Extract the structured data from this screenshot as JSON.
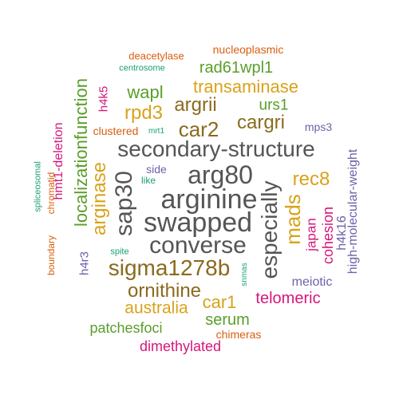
{
  "colors": {
    "gray": "#555555",
    "olive": "#8a6a1e",
    "gold": "#d9a21b",
    "green": "#5a9e2a",
    "magenta": "#d6177a",
    "purple": "#6b63a8",
    "orange": "#d95f0e",
    "teal": "#1b9e77"
  },
  "words": [
    {
      "text": "nucleoplasmic",
      "color": "orange",
      "size": 14
    },
    {
      "text": "deacetylase",
      "color": "orange",
      "size": 13
    },
    {
      "text": "centrosome",
      "color": "teal",
      "size": 11
    },
    {
      "text": "rad61wpl1",
      "color": "green",
      "size": 20
    },
    {
      "text": "localizationfunction",
      "color": "green",
      "size": 22
    },
    {
      "text": "h4k5",
      "color": "magenta",
      "size": 15
    },
    {
      "text": "wapl",
      "color": "green",
      "size": 22
    },
    {
      "text": "transaminase",
      "color": "gold",
      "size": 22
    },
    {
      "text": "rpd3",
      "color": "gold",
      "size": 24
    },
    {
      "text": "argrii",
      "color": "olive",
      "size": 24
    },
    {
      "text": "urs1",
      "color": "green",
      "size": 19
    },
    {
      "text": "cargri",
      "color": "olive",
      "size": 24
    },
    {
      "text": "car2",
      "color": "olive",
      "size": 26
    },
    {
      "text": "clustered",
      "color": "orange",
      "size": 14
    },
    {
      "text": "mrt1",
      "color": "teal",
      "size": 10
    },
    {
      "text": "mps3",
      "color": "purple",
      "size": 14
    },
    {
      "text": "hmt1-deletion",
      "color": "magenta",
      "size": 16
    },
    {
      "text": "secondary-structure",
      "color": "gray",
      "size": 28
    },
    {
      "text": "high-molecular-weight",
      "color": "purple",
      "size": 16
    },
    {
      "text": "spliceosomal",
      "color": "teal",
      "size": 11
    },
    {
      "text": "chromatid",
      "color": "orange",
      "size": 12
    },
    {
      "text": "arginase",
      "color": "gold",
      "size": 24
    },
    {
      "text": "sap30",
      "color": "gray",
      "size": 30
    },
    {
      "text": "side",
      "color": "purple",
      "size": 14
    },
    {
      "text": "like",
      "color": "teal",
      "size": 12
    },
    {
      "text": "arg80",
      "color": "gray",
      "size": 32
    },
    {
      "text": "especially",
      "color": "gray",
      "size": 28
    },
    {
      "text": "rec8",
      "color": "gold",
      "size": 24
    },
    {
      "text": "arginine",
      "color": "gray",
      "size": 34
    },
    {
      "text": "mads",
      "color": "gold",
      "size": 26
    },
    {
      "text": "swapped",
      "color": "gray",
      "size": 34
    },
    {
      "text": "japan",
      "color": "magenta",
      "size": 17
    },
    {
      "text": "cohesion",
      "color": "magenta",
      "size": 18
    },
    {
      "text": "h4k16",
      "color": "purple",
      "size": 16
    },
    {
      "text": "boundary",
      "color": "orange",
      "size": 12
    },
    {
      "text": "converse",
      "color": "gray",
      "size": 30
    },
    {
      "text": "spite",
      "color": "teal",
      "size": 11
    },
    {
      "text": "h4r3",
      "color": "purple",
      "size": 15
    },
    {
      "text": "sigma1278b",
      "color": "olive",
      "size": 28
    },
    {
      "text": "snmas",
      "color": "teal",
      "size": 10
    },
    {
      "text": "meiotic",
      "color": "purple",
      "size": 16
    },
    {
      "text": "ornithine",
      "color": "olive",
      "size": 24
    },
    {
      "text": "telomeric",
      "color": "magenta",
      "size": 20
    },
    {
      "text": "car1",
      "color": "gold",
      "size": 22
    },
    {
      "text": "australia",
      "color": "gold",
      "size": 21
    },
    {
      "text": "serum",
      "color": "green",
      "size": 20
    },
    {
      "text": "patchesfoci",
      "color": "green",
      "size": 18
    },
    {
      "text": "chimeras",
      "color": "orange",
      "size": 14
    },
    {
      "text": "dimethylated",
      "color": "magenta",
      "size": 18
    }
  ]
}
